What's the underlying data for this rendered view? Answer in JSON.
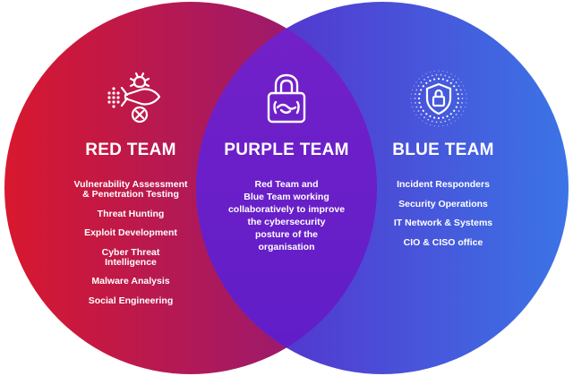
{
  "colors": {
    "red_start": "#d8182e",
    "red_end": "#8a1a80",
    "blue_start": "#6a2ed0",
    "blue_end": "#3b74e6",
    "purple_overlap": "#6a1fd0",
    "text": "#ffffff"
  },
  "red_team": {
    "title": "RED TEAM",
    "icon": "rocket-bug-icon",
    "items": [
      "Vulnerability Assessment\n& Penetration Testing",
      "Threat Hunting",
      "Exploit Development",
      "Cyber Threat\nIntelligence",
      "Malware Analysis",
      "Social Engineering"
    ]
  },
  "purple_team": {
    "title": "PURPLE TEAM",
    "icon": "padlock-handshake-icon",
    "description": "Red Team and\nBlue Team working\ncollaboratively to improve\nthe cybersecurity\nposture of the\norganisation"
  },
  "blue_team": {
    "title": "BLUE TEAM",
    "icon": "shield-lock-icon",
    "items": [
      "Incident Responders",
      "Security Operations",
      "IT Network & Systems",
      "CIO & CISO office"
    ]
  }
}
